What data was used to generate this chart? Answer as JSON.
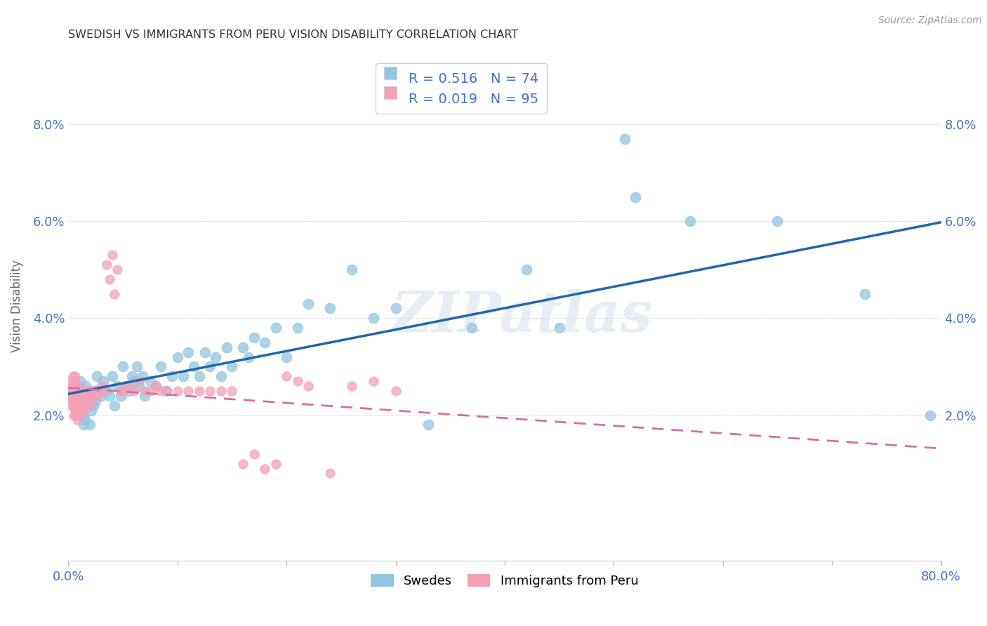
{
  "title": "SWEDISH VS IMMIGRANTS FROM PERU VISION DISABILITY CORRELATION CHART",
  "source": "Source: ZipAtlas.com",
  "ylabel": "Vision Disability",
  "watermark": "ZIPatlas",
  "xlim": [
    0.0,
    0.8
  ],
  "ylim": [
    -0.01,
    0.095
  ],
  "xtick_positions": [
    0.0,
    0.1,
    0.2,
    0.3,
    0.4,
    0.5,
    0.6,
    0.7,
    0.8
  ],
  "xtick_labels": [
    "0.0%",
    "",
    "",
    "",
    "",
    "",
    "",
    "",
    "80.0%"
  ],
  "ytick_positions": [
    0.02,
    0.04,
    0.06,
    0.08
  ],
  "ytick_labels": [
    "2.0%",
    "4.0%",
    "6.0%",
    "8.0%"
  ],
  "swede_color": "#92c5de",
  "peru_color": "#f4a0b5",
  "swede_line_color": "#2166ac",
  "peru_line_color": "#d46fa0",
  "R_swede": 0.516,
  "N_swede": 74,
  "R_peru": 0.019,
  "N_peru": 95,
  "legend_swede_label": "Swedes",
  "legend_peru_label": "Immigrants from Peru",
  "swede_x": [
    0.005,
    0.008,
    0.009,
    0.01,
    0.011,
    0.012,
    0.013,
    0.014,
    0.015,
    0.016,
    0.018,
    0.019,
    0.02,
    0.021,
    0.022,
    0.023,
    0.025,
    0.026,
    0.028,
    0.03,
    0.032,
    0.035,
    0.038,
    0.04,
    0.042,
    0.045,
    0.048,
    0.05,
    0.053,
    0.055,
    0.058,
    0.06,
    0.063,
    0.065,
    0.068,
    0.07,
    0.075,
    0.08,
    0.085,
    0.09,
    0.095,
    0.1,
    0.105,
    0.11,
    0.115,
    0.12,
    0.125,
    0.13,
    0.135,
    0.14,
    0.145,
    0.15,
    0.16,
    0.165,
    0.17,
    0.18,
    0.19,
    0.2,
    0.21,
    0.22,
    0.24,
    0.26,
    0.28,
    0.3,
    0.33,
    0.37,
    0.42,
    0.45,
    0.51,
    0.52,
    0.57,
    0.65,
    0.73,
    0.79
  ],
  "swede_y": [
    0.024,
    0.025,
    0.022,
    0.021,
    0.027,
    0.023,
    0.02,
    0.018,
    0.019,
    0.026,
    0.022,
    0.024,
    0.018,
    0.021,
    0.025,
    0.022,
    0.023,
    0.028,
    0.025,
    0.024,
    0.027,
    0.025,
    0.024,
    0.028,
    0.022,
    0.026,
    0.024,
    0.03,
    0.026,
    0.025,
    0.028,
    0.027,
    0.03,
    0.026,
    0.028,
    0.024,
    0.027,
    0.026,
    0.03,
    0.025,
    0.028,
    0.032,
    0.028,
    0.033,
    0.03,
    0.028,
    0.033,
    0.03,
    0.032,
    0.028,
    0.034,
    0.03,
    0.034,
    0.032,
    0.036,
    0.035,
    0.038,
    0.032,
    0.038,
    0.043,
    0.042,
    0.05,
    0.04,
    0.042,
    0.018,
    0.038,
    0.05,
    0.038,
    0.077,
    0.065,
    0.06,
    0.06,
    0.045,
    0.02
  ],
  "peru_x": [
    0.001,
    0.002,
    0.002,
    0.003,
    0.003,
    0.003,
    0.004,
    0.004,
    0.004,
    0.005,
    0.005,
    0.005,
    0.005,
    0.006,
    0.006,
    0.006,
    0.006,
    0.007,
    0.007,
    0.007,
    0.007,
    0.008,
    0.008,
    0.008,
    0.008,
    0.009,
    0.009,
    0.009,
    0.01,
    0.01,
    0.01,
    0.011,
    0.011,
    0.012,
    0.012,
    0.013,
    0.013,
    0.014,
    0.014,
    0.015,
    0.015,
    0.016,
    0.016,
    0.017,
    0.017,
    0.018,
    0.018,
    0.019,
    0.019,
    0.02,
    0.02,
    0.021,
    0.022,
    0.023,
    0.024,
    0.025,
    0.026,
    0.027,
    0.028,
    0.029,
    0.03,
    0.031,
    0.032,
    0.035,
    0.038,
    0.04,
    0.042,
    0.045,
    0.048,
    0.05,
    0.055,
    0.06,
    0.065,
    0.07,
    0.075,
    0.08,
    0.085,
    0.09,
    0.1,
    0.11,
    0.12,
    0.13,
    0.14,
    0.15,
    0.16,
    0.17,
    0.18,
    0.19,
    0.2,
    0.21,
    0.22,
    0.24,
    0.26,
    0.28,
    0.3
  ],
  "peru_y": [
    0.027,
    0.025,
    0.023,
    0.026,
    0.024,
    0.022,
    0.028,
    0.025,
    0.023,
    0.027,
    0.025,
    0.022,
    0.02,
    0.028,
    0.026,
    0.024,
    0.021,
    0.027,
    0.025,
    0.023,
    0.02,
    0.026,
    0.024,
    0.022,
    0.019,
    0.025,
    0.023,
    0.021,
    0.025,
    0.023,
    0.02,
    0.024,
    0.022,
    0.025,
    0.022,
    0.024,
    0.022,
    0.023,
    0.021,
    0.024,
    0.022,
    0.025,
    0.022,
    0.024,
    0.022,
    0.025,
    0.023,
    0.024,
    0.022,
    0.025,
    0.023,
    0.024,
    0.025,
    0.025,
    0.024,
    0.025,
    0.024,
    0.025,
    0.025,
    0.025,
    0.026,
    0.025,
    0.025,
    0.051,
    0.048,
    0.053,
    0.045,
    0.05,
    0.025,
    0.025,
    0.026,
    0.025,
    0.027,
    0.025,
    0.025,
    0.026,
    0.025,
    0.025,
    0.025,
    0.025,
    0.025,
    0.025,
    0.025,
    0.025,
    0.01,
    0.012,
    0.009,
    0.01,
    0.028,
    0.027,
    0.026,
    0.008,
    0.026,
    0.027,
    0.025
  ],
  "background_color": "#ffffff",
  "grid_color": "#e0e0e0",
  "tick_color": "#4472c4",
  "title_color": "#333333",
  "ylabel_color": "#666666",
  "legend_text_color_black": "#333333",
  "legend_text_color_blue": "#4472c4"
}
